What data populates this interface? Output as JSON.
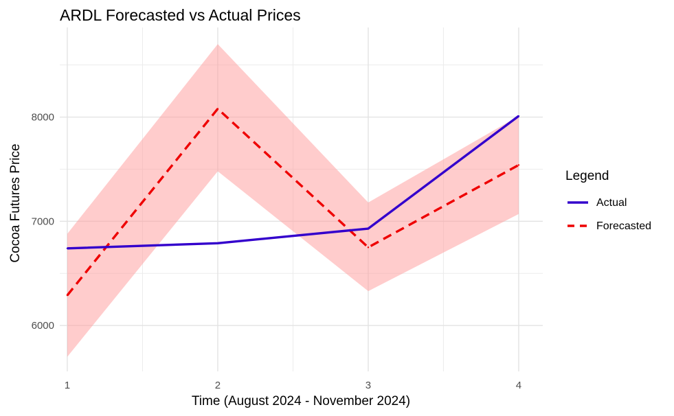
{
  "chart_data": {
    "type": "line",
    "title": "ARDL Forecasted vs Actual Prices",
    "xlabel": "Time (August 2024 - November 2024)",
    "ylabel": "Cocoa Futures Price",
    "x": [
      1,
      2,
      3,
      4
    ],
    "x_ticks": [
      "1",
      "2",
      "3",
      "4"
    ],
    "y_ticks": [
      6000,
      7000,
      8000
    ],
    "xlim": [
      0.95,
      4.16
    ],
    "ylim": [
      5560,
      8860
    ],
    "grid": true,
    "legend_title": "Legend",
    "legend_position": "right",
    "series": [
      {
        "name": "Actual",
        "values": [
          6740,
          6790,
          6930,
          8010
        ],
        "color": "#3300cc",
        "style": "solid"
      },
      {
        "name": "Forecasted",
        "values": [
          6290,
          8080,
          6750,
          7540
        ],
        "color": "#ee0000",
        "style": "dashed"
      }
    ],
    "band": {
      "of": "Forecasted",
      "lower": [
        5700,
        7480,
        6330,
        7070
      ],
      "upper": [
        6880,
        8700,
        7180,
        8010
      ],
      "color": "#ff9999"
    }
  }
}
